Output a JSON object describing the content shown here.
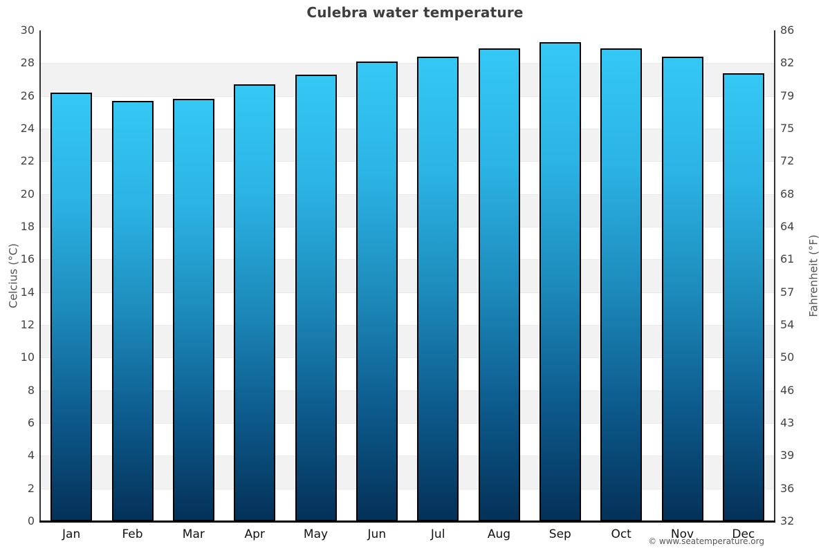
{
  "title": "Culebra water temperature",
  "attribution": "© www.seatemperature.org",
  "chart_data": {
    "type": "bar",
    "title": "Culebra water temperature",
    "categories": [
      "Jan",
      "Feb",
      "Mar",
      "Apr",
      "May",
      "Jun",
      "Jul",
      "Aug",
      "Sep",
      "Oct",
      "Nov",
      "Dec"
    ],
    "values": [
      26.2,
      25.7,
      25.8,
      26.7,
      27.3,
      28.1,
      28.4,
      28.9,
      29.3,
      28.9,
      28.4,
      27.4
    ],
    "unit": "°C",
    "ylabel_left": "Celcius (°C)",
    "ylabel_right": "Fahrenheit (°F)",
    "ylim": [
      0,
      30
    ],
    "yticks_celsius": [
      0,
      2,
      4,
      6,
      8,
      10,
      12,
      14,
      16,
      18,
      20,
      22,
      24,
      26,
      28,
      30
    ],
    "yticks_fahrenheit": [
      32,
      36,
      39,
      43,
      46,
      50,
      54,
      57,
      61,
      64,
      68,
      72,
      75,
      79,
      82,
      86
    ],
    "grid_bands": "alternating",
    "legend_position": "none",
    "colors": {
      "bar_gradient_top": "#35c8f5",
      "bar_gradient_bottom": "#043158",
      "bar_border": "#000000",
      "band_alt": "#f2f2f2",
      "axis_line": "#333333",
      "baseline": "#000000",
      "title_text": "#3e3e3e",
      "tick_text": "#444444",
      "month_text": "#111111",
      "attribution_text": "#555555"
    }
  }
}
